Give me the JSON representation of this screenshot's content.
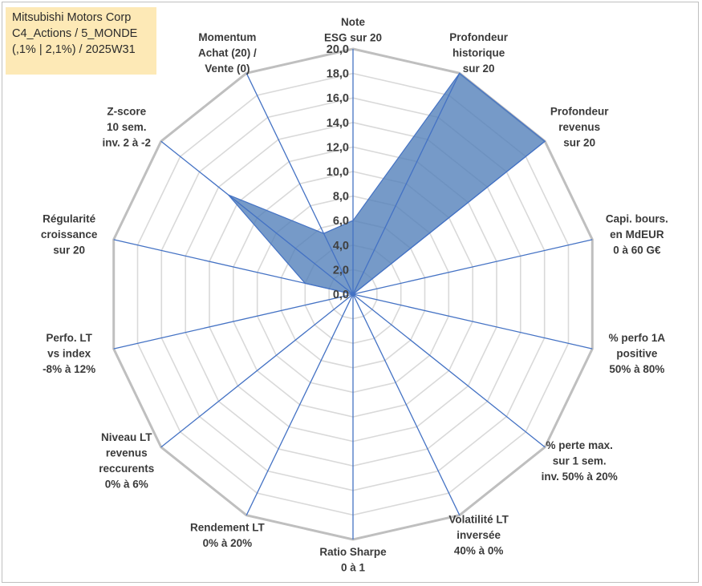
{
  "header": {
    "lines": [
      "Mitsubishi Motors Corp",
      "C4_Actions / 5_MONDE",
      "(,1% | 2,1%) / 2025W31"
    ]
  },
  "colors": {
    "fill": "#4f7eb8",
    "spoke": "#4472c4",
    "grid": "#d9d9d9",
    "outer": "#bfbfbf",
    "title_bg": "#fde9b6"
  },
  "chart_data": {
    "type": "radar",
    "r_min": 0,
    "r_max": 20,
    "tick_step": 2,
    "tick_labels": [
      "0,0",
      "2,0",
      "4,0",
      "6,0",
      "8,0",
      "10,0",
      "12,0",
      "14,0",
      "16,0",
      "18,0",
      "20,0"
    ],
    "axes": [
      [
        "Note",
        "ESG sur 20"
      ],
      [
        "Profondeur",
        "historique",
        "sur 20"
      ],
      [
        "Profondeur",
        "revenus",
        "sur 20"
      ],
      [
        "Capi. bours.",
        "en MdEUR",
        "0 à 60 G€"
      ],
      [
        "% perfo 1A",
        "positive",
        "50% à 80%"
      ],
      [
        "% perte max.",
        "sur 1 sem.",
        "inv. 50% à 20%"
      ],
      [
        "Volatilité LT",
        "inversée",
        "40% à 0%"
      ],
      [
        "Ratio Sharpe",
        "0 à 1"
      ],
      [
        "Rendement LT",
        "0% à 20%"
      ],
      [
        "Niveau LT",
        "revenus",
        "reccurents",
        "0% à 6%"
      ],
      [
        "Perfo. LT",
        "vs index",
        "-8% à 12%"
      ],
      [
        "Régularité",
        "croissance",
        "sur 20"
      ],
      [
        "Z-score",
        "10 sem.",
        "inv. 2 à -2"
      ],
      [
        "Momentum",
        "Achat (20) /",
        "Vente (0)"
      ]
    ],
    "series": [
      {
        "values": [
          6.0,
          20.0,
          20.0,
          0.0,
          0.0,
          0.0,
          0.0,
          0.0,
          0.0,
          0.0,
          0.0,
          4.0,
          13.0,
          5.5
        ]
      }
    ]
  }
}
